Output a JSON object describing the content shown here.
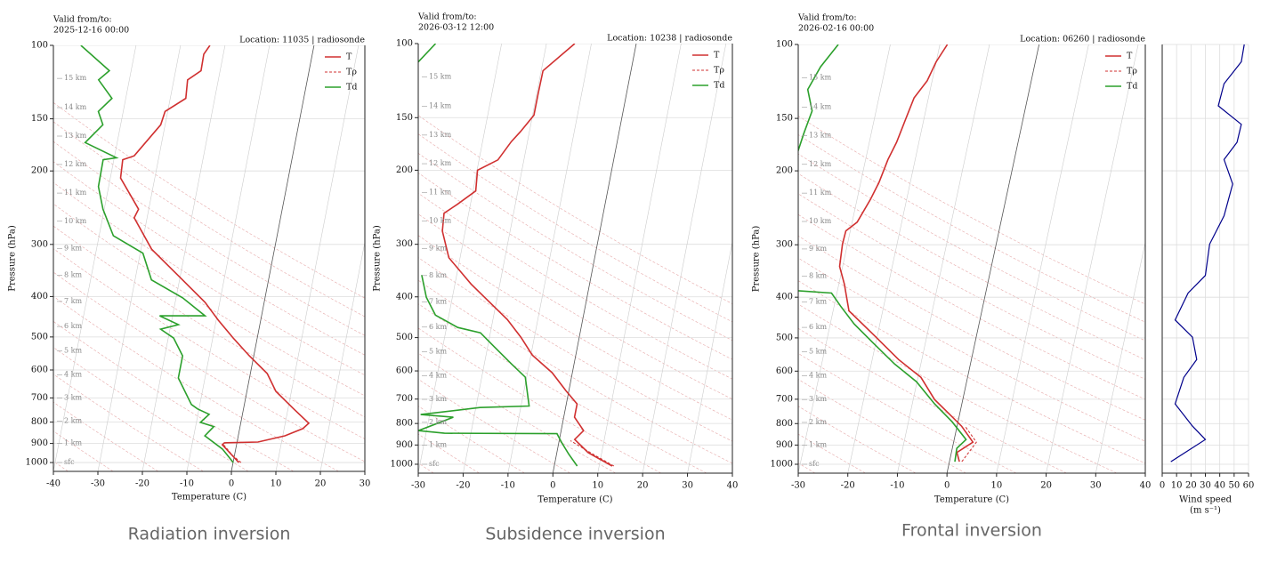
{
  "chart_data": [
    {
      "type": "skewt",
      "title_lines": [
        "Valid from/to:",
        "2025-12-16 00:00"
      ],
      "location": "Location: 11035 | radiosonde",
      "xlabel": "Temperature (C)",
      "ylabel": "Pressure (hPa)",
      "caption": "Radiation inversion",
      "xlim": [
        -40,
        30
      ],
      "xticks": [
        -40,
        -30,
        -20,
        -10,
        0,
        10,
        20,
        30
      ],
      "ylim": [
        1050,
        100
      ],
      "yticks": [
        100,
        150,
        200,
        300,
        400,
        500,
        600,
        700,
        800,
        900,
        1000
      ],
      "log_y": true,
      "grid": true,
      "legend": "upper right",
      "height_labels": [
        {
          "label": "sfc",
          "pressure": 1000
        },
        {
          "label": "1 km",
          "pressure": 900
        },
        {
          "label": "2 km",
          "pressure": 795
        },
        {
          "label": "3 km",
          "pressure": 701
        },
        {
          "label": "4 km",
          "pressure": 616
        },
        {
          "label": "5 km",
          "pressure": 540
        },
        {
          "label": "6 km",
          "pressure": 472
        },
        {
          "label": "7 km",
          "pressure": 411
        },
        {
          "label": "8 km",
          "pressure": 356
        },
        {
          "label": "9 km",
          "pressure": 307
        },
        {
          "label": "10 km",
          "pressure": 264
        },
        {
          "label": "11 km",
          "pressure": 226
        },
        {
          "label": "12 km",
          "pressure": 193
        },
        {
          "label": "13 km",
          "pressure": 165
        },
        {
          "label": "14 km",
          "pressure": 141
        },
        {
          "label": "15 km",
          "pressure": 120
        }
      ],
      "series": [
        {
          "name": "T",
          "color": "#d03030",
          "dashed": false,
          "pressure": [
            1000,
            906,
            897,
            893,
            863,
            829,
            805,
            744,
            675,
            612,
            555,
            503,
            456,
            413,
            357,
            308,
            259,
            247,
            208,
            188,
            184,
            155,
            144,
            134,
            121,
            115,
            105,
            100
          ],
          "values": [
            1.3,
            -3.2,
            -2.8,
            4.7,
            10.5,
            14.2,
            15.3,
            11.3,
            6.5,
            3.8,
            -1,
            -5.4,
            -9.5,
            -13.3,
            -20.4,
            -27.6,
            -32.9,
            -32.3,
            -37.7,
            -38,
            -35.6,
            -31,
            -30.6,
            -26.5,
            -26.9,
            -24.3,
            -24.4,
            -23.4
          ]
        },
        {
          "name": "Tρ",
          "color": "#d03030",
          "dashed": true,
          "pressure": [
            1000,
            960,
            906
          ],
          "values": [
            1.8,
            -0.5,
            -2.9
          ]
        },
        {
          "name": "Td",
          "color": "#2ca02c",
          "dashed": false,
          "pressure": [
            1000,
            928,
            863,
            820,
            801,
            766,
            744,
            726,
            627,
            555,
            503,
            479,
            467,
            445,
            445,
            403,
            365,
            315,
            286,
            247,
            218,
            188,
            186,
            171,
            155,
            144,
            134,
            121,
            115,
            100
          ],
          "values": [
            0.05,
            -3,
            -7.5,
            -5.9,
            -9.1,
            -7.5,
            -10.3,
            -11.9,
            -16,
            -16,
            -18.8,
            -22.1,
            -18.3,
            -22.9,
            -12.7,
            -18.5,
            -26.3,
            -29.4,
            -36.8,
            -40.3,
            -42.3,
            -42.4,
            -39.5,
            -47.2,
            -44,
            -45.6,
            -43.1,
            -46.9,
            -44.9,
            -52.4
          ]
        }
      ]
    },
    {
      "type": "skewt",
      "title_lines": [
        "Valid from/to:",
        "2026-03-12 12:00"
      ],
      "location": "Location: 10238 | radiosonde",
      "xlabel": "Temperature (C)",
      "ylabel": "Pressure (hPa)",
      "caption": "Subsidence inversion",
      "xlim": [
        -30,
        40
      ],
      "xticks": [
        -30,
        -20,
        -10,
        0,
        10,
        20,
        30,
        40
      ],
      "ylim": [
        1050,
        100
      ],
      "yticks": [
        100,
        150,
        200,
        300,
        400,
        500,
        600,
        700,
        800,
        900,
        1000
      ],
      "log_y": true,
      "grid": true,
      "legend": "upper right",
      "height_labels": [
        {
          "label": "sfc",
          "pressure": 1000
        },
        {
          "label": "1 km",
          "pressure": 900
        },
        {
          "label": "2 km",
          "pressure": 795
        },
        {
          "label": "3 km",
          "pressure": 701
        },
        {
          "label": "4 km",
          "pressure": 616
        },
        {
          "label": "5 km",
          "pressure": 540
        },
        {
          "label": "6 km",
          "pressure": 472
        },
        {
          "label": "7 km",
          "pressure": 411
        },
        {
          "label": "8 km",
          "pressure": 356
        },
        {
          "label": "9 km",
          "pressure": 307
        },
        {
          "label": "10 km",
          "pressure": 264
        },
        {
          "label": "11 km",
          "pressure": 226
        },
        {
          "label": "12 km",
          "pressure": 193
        },
        {
          "label": "13 km",
          "pressure": 165
        },
        {
          "label": "14 km",
          "pressure": 141
        },
        {
          "label": "15 km",
          "pressure": 120
        }
      ],
      "series": [
        {
          "name": "T",
          "color": "#d03030",
          "dashed": false,
          "pressure": [
            1010,
            939,
            873,
            832,
            773,
            719,
            668,
            606,
            550,
            499,
            453,
            421,
            373,
            323,
            279,
            253,
            241,
            224,
            200,
            189,
            171,
            162,
            148,
            131,
            116,
            100
          ],
          "values": [
            12.9,
            7,
            3.4,
            5,
            2.4,
            2.4,
            -0.7,
            -4.5,
            -9.7,
            -13,
            -16.8,
            -20.4,
            -26.4,
            -32.5,
            -35.1,
            -35.5,
            -32.9,
            -29.4,
            -29.9,
            -25.8,
            -23.6,
            -22,
            -19.7,
            -19.7,
            -19.6,
            -13.7
          ]
        },
        {
          "name": "Tρ",
          "color": "#d03030",
          "dashed": true,
          "pressure": [
            1010,
            946,
            879
          ],
          "values": [
            13.3,
            8.1,
            2.5
          ]
        },
        {
          "name": "Td",
          "color": "#2ca02c",
          "dashed": false,
          "pressure": [
            1010,
            946,
            887,
            846,
            844,
            832,
            773,
            762,
            733,
            727,
            621,
            578,
            524,
            487,
            473,
            442,
            401,
            355,
            300,
            111,
            100
          ],
          "values": [
            5.1,
            2.7,
            0.6,
            -0.8,
            -25.9,
            -31.8,
            -24.6,
            -32,
            -19.1,
            -8.2,
            -10.3,
            -13.9,
            -18.7,
            -22.2,
            -27.5,
            -33,
            -35.8,
            -37.8,
            null,
            -47.9,
            -44.7
          ]
        }
      ]
    },
    {
      "type": "skewt",
      "title_lines": [
        "Valid from/to:",
        "2026-02-16 00:00"
      ],
      "location": "Location: 06260 | radiosonde",
      "xlabel": "Temperature (C)",
      "ylabel": "Pressure (hPa)",
      "caption": "Frontal inversion",
      "xlim": [
        -30,
        40
      ],
      "xticks": [
        -30,
        -20,
        -10,
        0,
        10,
        20,
        30,
        40
      ],
      "ylim": [
        1050,
        100
      ],
      "yticks": [
        100,
        150,
        200,
        300,
        400,
        500,
        600,
        700,
        800,
        900,
        1000
      ],
      "log_y": true,
      "grid": true,
      "legend": "upper right",
      "height_labels": [
        {
          "label": "sfc",
          "pressure": 1000
        },
        {
          "label": "1 km",
          "pressure": 900
        },
        {
          "label": "2 km",
          "pressure": 795
        },
        {
          "label": "3 km",
          "pressure": 701
        },
        {
          "label": "4 km",
          "pressure": 616
        },
        {
          "label": "5 km",
          "pressure": 540
        },
        {
          "label": "6 km",
          "pressure": 472
        },
        {
          "label": "7 km",
          "pressure": 411
        },
        {
          "label": "8 km",
          "pressure": 356
        },
        {
          "label": "9 km",
          "pressure": 307
        },
        {
          "label": "10 km",
          "pressure": 264
        },
        {
          "label": "11 km",
          "pressure": 226
        },
        {
          "label": "12 km",
          "pressure": 193
        },
        {
          "label": "13 km",
          "pressure": 165
        },
        {
          "label": "14 km",
          "pressure": 141
        },
        {
          "label": "15 km",
          "pressure": 120
        }
      ],
      "series": [
        {
          "name": "T",
          "color": "#d03030",
          "dashed": false,
          "pressure": [
            986,
            937,
            886,
            811,
            754,
            701,
            621,
            563,
            498,
            431,
            372,
            338,
            299,
            278,
            265,
            234,
            213,
            188,
            171,
            151,
            134,
            122,
            110,
            100
          ],
          "values": [
            2,
            1.1,
            3.9,
            0.9,
            -2.4,
            -5.7,
            -9.4,
            -14.7,
            -20.2,
            -26.8,
            -28.9,
            -30.6,
            -31,
            -30.9,
            -29,
            -27.3,
            -26.3,
            -25.5,
            -24.5,
            -23.7,
            -22.9,
            -21,
            -20,
            -18.5
          ]
        },
        {
          "name": "Tρ",
          "color": "#d03030",
          "dashed": true,
          "pressure": [
            986,
            886,
            811
          ],
          "values": [
            2.5,
            4.6,
            1.6
          ]
        },
        {
          "name": "Td",
          "color": "#2ca02c",
          "dashed": false,
          "pressure": [
            986,
            916,
            873,
            792,
            718,
            636,
            577,
            511,
            463,
            420,
            391,
            386,
            300,
            184,
            163,
            144,
            128,
            113,
            100
          ],
          "values": [
            1.1,
            0.9,
            2.4,
            -1.2,
            -5.5,
            -10.1,
            -15.3,
            -20.8,
            -25.2,
            -28.7,
            -31.1,
            -38,
            null,
            -44.1,
            -43.6,
            -42.9,
            -44.7,
            -43.1,
            -40.5
          ]
        }
      ],
      "wind": {
        "xlabel_lines": [
          "Wind speed",
          "(m s⁻¹)"
        ],
        "xlim": [
          0,
          60
        ],
        "xticks": [
          0,
          10,
          20,
          30,
          40,
          50,
          60
        ],
        "color": "#00008b",
        "pressure": [
          986,
          873,
          811,
          718,
          621,
          563,
          498,
          453,
          391,
          355,
          299,
          256,
          215,
          188,
          171,
          155,
          140,
          124,
          110,
          100
        ],
        "values": [
          6,
          30,
          21,
          9,
          15,
          24,
          21,
          9,
          18,
          30,
          33,
          43,
          49,
          43,
          52,
          55,
          39,
          43,
          55,
          57
        ]
      }
    }
  ]
}
